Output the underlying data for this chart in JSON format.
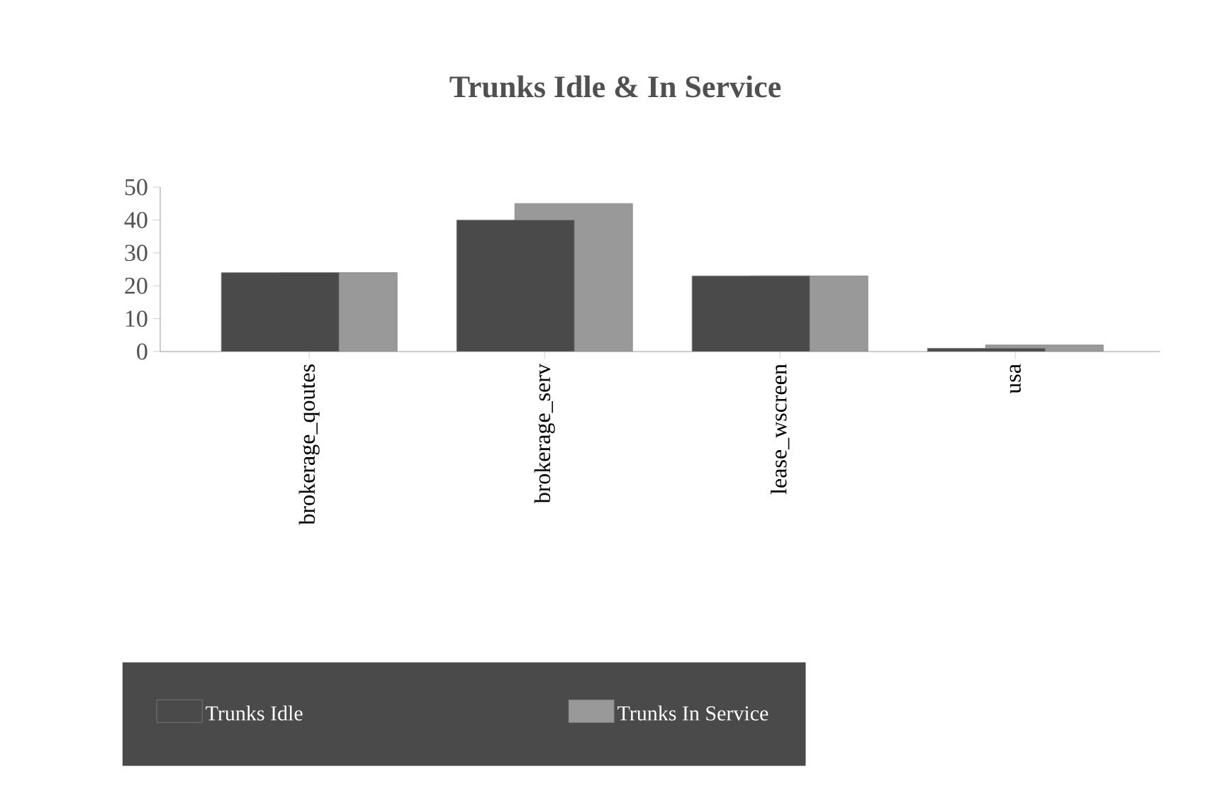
{
  "chart_data": {
    "type": "bar",
    "title": "Trunks Idle & In Service",
    "categories": [
      "brokerage_qoutes",
      "brokerage_serv",
      "lease_wscreen",
      "usa"
    ],
    "series": [
      {
        "name": "Trunks Idle",
        "color": "#4a4a4a",
        "values": [
          24,
          40,
          23,
          1
        ]
      },
      {
        "name": "Trunks In Service",
        "color": "#999999",
        "values": [
          24,
          45,
          23,
          2
        ]
      }
    ],
    "ylim": [
      0,
      50
    ],
    "yticks": [
      0,
      10,
      20,
      30,
      40,
      50
    ],
    "grid": false,
    "legend": "bottom"
  }
}
